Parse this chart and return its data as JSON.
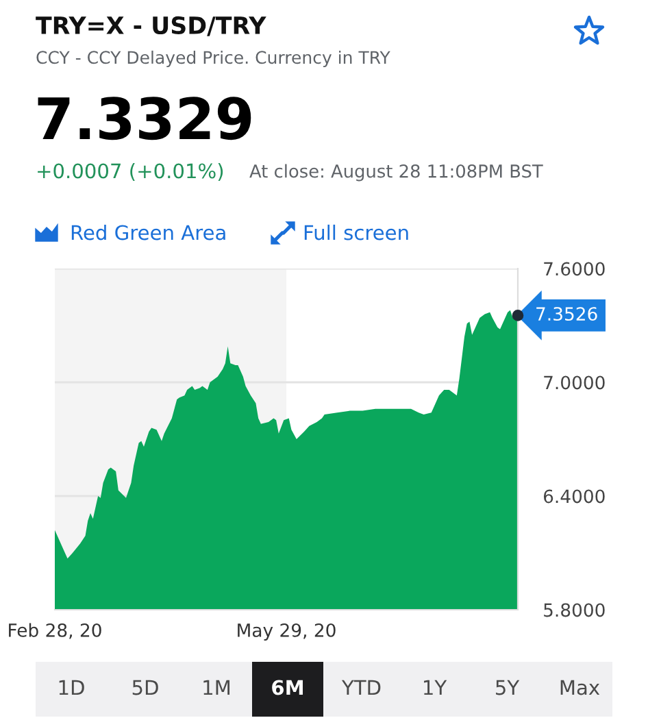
{
  "chart_data": {
    "type": "area",
    "title": "TRY=X - USD/TRY",
    "subtitle": "CCY - CCY Delayed Price. Currency in TRY",
    "annotations": [
      "7.3329",
      "+0.0007 (+0.01%)",
      "At close: August 28 11:08PM BST",
      "Red Green Area",
      "Full screen",
      "1D",
      "5D",
      "1M",
      "6M",
      "YTD",
      "1Y",
      "5Y",
      "Max",
      {
        "text": "7.3526",
        "x": "2020-08-28",
        "y": 7.3526
      }
    ],
    "x": [
      "2020-02-28",
      "2020-03-02",
      "2020-03-04",
      "2020-03-06",
      "2020-03-09",
      "2020-03-11",
      "2020-03-12",
      "2020-03-13",
      "2020-03-14",
      "2020-03-16",
      "2020-03-17",
      "2020-03-18",
      "2020-03-20",
      "2020-03-21",
      "2020-03-23",
      "2020-03-24",
      "2020-03-27",
      "2020-03-29",
      "2020-03-30",
      "2020-04-01",
      "2020-04-02",
      "2020-04-03",
      "2020-04-05",
      "2020-04-06",
      "2020-04-08",
      "2020-04-10",
      "2020-04-11",
      "2020-04-14",
      "2020-04-16",
      "2020-04-17",
      "2020-04-19",
      "2020-04-20",
      "2020-04-22",
      "2020-04-23",
      "2020-04-25",
      "2020-04-26",
      "2020-04-28",
      "2020-04-29",
      "2020-05-02",
      "2020-05-04",
      "2020-05-05",
      "2020-05-06",
      "2020-05-07",
      "2020-05-09",
      "2020-05-10",
      "2020-05-12",
      "2020-05-13",
      "2020-05-15",
      "2020-05-17",
      "2020-05-18",
      "2020-05-19",
      "2020-05-22",
      "2020-05-24",
      "2020-05-25",
      "2020-05-26",
      "2020-05-28",
      "2020-05-30",
      "2020-05-31",
      "2020-06-02",
      "2020-06-05",
      "2020-06-07",
      "2020-06-10",
      "2020-06-12",
      "2020-06-13",
      "2020-06-18",
      "2020-06-23",
      "2020-06-28",
      "2020-07-03",
      "2020-07-08",
      "2020-07-14",
      "2020-07-17",
      "2020-07-20",
      "2020-07-22",
      "2020-07-25",
      "2020-07-26",
      "2020-07-28",
      "2020-07-30",
      "2020-08-01",
      "2020-08-03",
      "2020-08-04",
      "2020-08-05",
      "2020-08-07",
      "2020-08-08",
      "2020-08-09",
      "2020-08-10",
      "2020-08-12",
      "2020-08-13",
      "2020-08-15",
      "2020-08-17",
      "2020-08-18",
      "2020-08-20",
      "2020-08-21",
      "2020-08-22",
      "2020-08-24",
      "2020-08-25",
      "2020-08-26",
      "2020-08-27",
      "2020-08-28"
    ],
    "values": [
      6.22,
      6.13,
      6.07,
      6.1,
      6.15,
      6.19,
      6.27,
      6.31,
      6.28,
      6.4,
      6.39,
      6.47,
      6.54,
      6.55,
      6.53,
      6.43,
      6.39,
      6.47,
      6.56,
      6.68,
      6.69,
      6.66,
      6.74,
      6.76,
      6.75,
      6.69,
      6.73,
      6.81,
      6.91,
      6.92,
      6.93,
      6.96,
      6.98,
      6.96,
      6.97,
      6.98,
      6.96,
      7.0,
      7.03,
      7.07,
      7.1,
      7.19,
      7.1,
      7.09,
      7.09,
      7.03,
      6.98,
      6.93,
      6.89,
      6.81,
      6.78,
      6.79,
      6.81,
      6.8,
      6.73,
      6.8,
      6.81,
      6.75,
      6.7,
      6.74,
      6.77,
      6.79,
      6.81,
      6.83,
      6.84,
      6.85,
      6.85,
      6.86,
      6.86,
      6.86,
      6.86,
      6.84,
      6.83,
      6.84,
      6.87,
      6.93,
      6.96,
      6.96,
      6.94,
      6.93,
      7.02,
      7.24,
      7.31,
      7.32,
      7.25,
      7.31,
      7.34,
      7.36,
      7.37,
      7.34,
      7.29,
      7.28,
      7.31,
      7.37,
      7.38,
      7.34,
      7.38,
      7.3526
    ],
    "color": "#0aa75c",
    "xlim": [
      "2020-02-28",
      "2020-08-28"
    ],
    "xticks": [
      {
        "value": "2020-02-28",
        "label": "Feb 28, 20"
      },
      {
        "value": "2020-05-29",
        "label": "May 29, 20"
      }
    ],
    "ylim": [
      5.8,
      7.6
    ],
    "yticks": [
      {
        "value": 5.8,
        "label": "5.8000"
      },
      {
        "value": 6.4,
        "label": "6.4000"
      },
      {
        "value": 7.0,
        "label": "7.0000"
      },
      {
        "value": 7.6,
        "label": "7.6000"
      }
    ],
    "bands": [
      {
        "axis": "x",
        "from": "2020-02-28",
        "to": "2020-05-29",
        "color": "#f4f4f4"
      }
    ],
    "grid": "y"
  }
}
